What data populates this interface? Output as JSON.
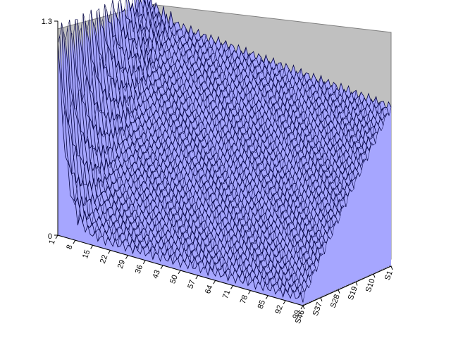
{
  "chart_data": {
    "type": "surface",
    "title": "",
    "xlabel": "",
    "ylabel": "",
    "zlabel": "",
    "zlim": [
      0,
      1.3
    ],
    "z_tick_labels": [
      "0",
      "1.3"
    ],
    "x_tick_labels": [
      "1",
      "8",
      "15",
      "22",
      "29",
      "36",
      "43",
      "50",
      "57",
      "64",
      "71",
      "78",
      "85",
      "92",
      "99"
    ],
    "x_range": [
      1,
      99
    ],
    "series_tick_labels": [
      "S1",
      "S10",
      "S19",
      "S28",
      "S37",
      "S46"
    ],
    "series_count": 46,
    "surface_shape": {
      "description": "values near 1.2 at x=1 decay steeply within first ~10 points then decline slowly; front series (S46) lowest, back series (S1) highest",
      "peak_value_back_series": 1.22,
      "tail_value_back_series": 1.1,
      "tail_value_front_series": 0.05
    },
    "fill_color": "#a6a6ff",
    "line_color": "#000040",
    "floor_color": "#808080",
    "wall_color": "#c0c0c0"
  }
}
